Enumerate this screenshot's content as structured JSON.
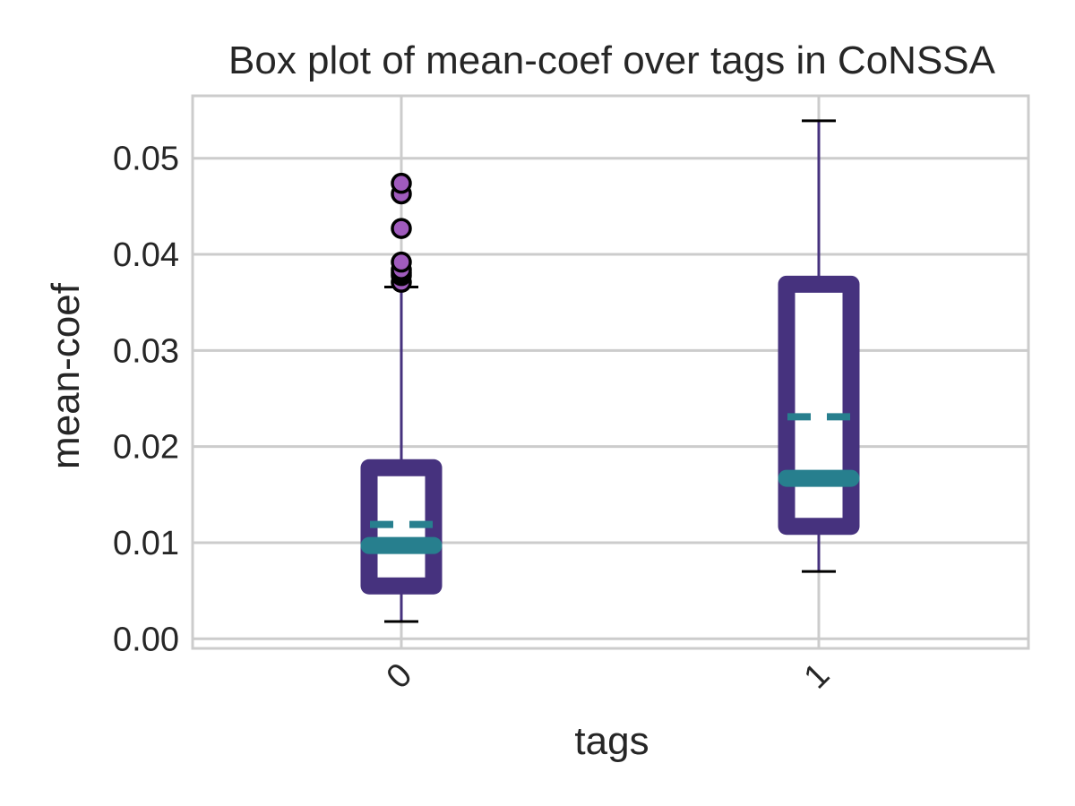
{
  "chart_data": {
    "type": "box",
    "title": "Box plot of mean-coef over tags in CoNSSA",
    "xlabel": "tags",
    "ylabel": "mean-coef",
    "categories": [
      "0",
      "1"
    ],
    "ylim": [
      -0.001,
      0.0565
    ],
    "yticks": [
      "0.00",
      "0.01",
      "0.02",
      "0.03",
      "0.04",
      "0.05"
    ],
    "ytick_values": [
      0.0,
      0.01,
      0.02,
      0.03,
      0.04,
      0.05
    ],
    "grid": true,
    "boxes": [
      {
        "category": "0",
        "whisker_low": 0.0018,
        "q1": 0.0055,
        "median": 0.0097,
        "mean": 0.0119,
        "q3": 0.0178,
        "whisker_high": 0.0366,
        "outliers": [
          0.0371,
          0.0378,
          0.0381,
          0.0384,
          0.0392,
          0.0427,
          0.0463,
          0.0474
        ]
      },
      {
        "category": "1",
        "whisker_low": 0.007,
        "q1": 0.0117,
        "median": 0.0167,
        "mean": 0.0231,
        "q3": 0.0369,
        "whisker_high": 0.0539,
        "outliers": []
      }
    ],
    "colors": {
      "box": "#46327e",
      "median": "#277f8e",
      "mean": "#277f8e",
      "whisker": "#46327e",
      "cap": "#000000",
      "outlier_fill": "#a05bbd",
      "outlier_edge": "#000000"
    }
  }
}
